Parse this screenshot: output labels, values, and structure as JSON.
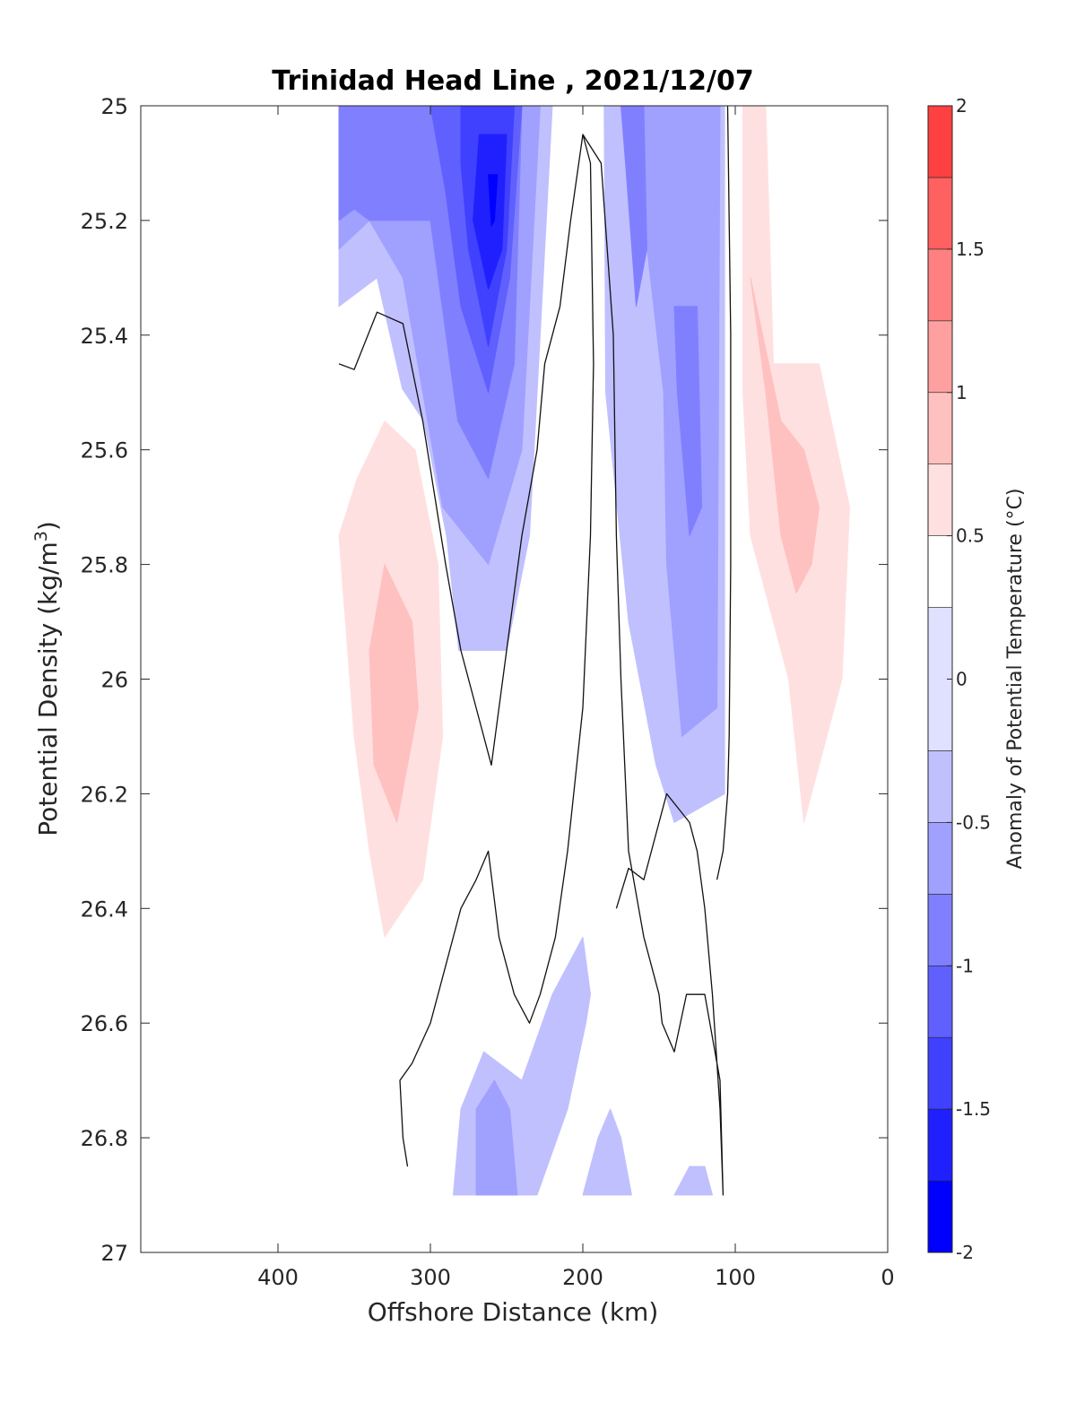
{
  "chart_data": {
    "type": "heatmap",
    "subtype": "filled-contour",
    "title": "Trinidad Head Line , 2021/12/07",
    "xlabel": "Offshore Distance (km)",
    "ylabel": "Potential Density (kg/m",
    "ylabel_sup": "3",
    "ylabel_close": ")",
    "xlim": [
      490,
      0
    ],
    "x_reversed": true,
    "ylim": [
      25,
      27
    ],
    "y_reversed": true,
    "xticks": [
      400,
      300,
      200,
      100,
      0
    ],
    "yticks": [
      25,
      25.2,
      25.4,
      25.6,
      25.8,
      26,
      26.2,
      26.4,
      26.6,
      26.8,
      27
    ],
    "ytick_labels": [
      "25",
      "25.2",
      "25.4",
      "25.6",
      "25.8",
      "26",
      "26.2",
      "26.4",
      "26.6",
      "26.8",
      "27"
    ],
    "colorbar": {
      "label": "Anomaly of Potential Temperature (°C)",
      "range": [
        -2,
        2
      ],
      "ticks": [
        -2,
        -1.5,
        -1,
        -0.5,
        0,
        0.5,
        1,
        1.5,
        2
      ],
      "levels": [
        -2,
        -1.75,
        -1.5,
        -1.25,
        -1,
        -0.75,
        -0.5,
        -0.25,
        0.25,
        0.5,
        0.75,
        1,
        1.25,
        1.5,
        1.75,
        2
      ],
      "colors": [
        "#0000ff",
        "#2020ff",
        "#4040ff",
        "#6060ff",
        "#8080ff",
        "#a0a0ff",
        "#c0c0ff",
        "#e0e0ff",
        "#ffffff",
        "#ffe0e0",
        "#ffc0c0",
        "#ffa0a0",
        "#ff8080",
        "#ff6060",
        "#ff4040",
        "#ff2020"
      ]
    },
    "data_extent": {
      "x_min": 20,
      "x_max": 360,
      "y_min": 25,
      "y_max": 26.9
    },
    "regions": [
      {
        "anomaly": -0.375,
        "points": [
          [
            360,
            25.0
          ],
          [
            220,
            25.0
          ],
          [
            235,
            25.75
          ],
          [
            250,
            25.95
          ],
          [
            290,
            25.95
          ],
          [
            305,
            25.65
          ],
          [
            335,
            25.3
          ],
          [
            360,
            25.35
          ]
        ]
      },
      {
        "anomaly": -0.625,
        "points": [
          [
            360,
            25.0
          ],
          [
            228,
            25.0
          ],
          [
            240,
            25.6
          ],
          [
            262,
            25.8
          ],
          [
            292,
            25.7
          ],
          [
            318,
            25.3
          ],
          [
            340,
            25.2
          ],
          [
            360,
            25.25
          ]
        ]
      },
      {
        "anomaly": -0.875,
        "points": [
          [
            360,
            25.0
          ],
          [
            240,
            25.0
          ],
          [
            245,
            25.45
          ],
          [
            262,
            25.65
          ],
          [
            282,
            25.55
          ],
          [
            300,
            25.2
          ],
          [
            340,
            25.2
          ],
          [
            350,
            25.18
          ],
          [
            360,
            25.2
          ]
        ]
      },
      {
        "anomaly": -1.125,
        "points": [
          [
            300,
            25.0
          ],
          [
            240,
            25.0
          ],
          [
            248,
            25.3
          ],
          [
            262,
            25.5
          ],
          [
            280,
            25.35
          ],
          [
            290,
            25.15
          ]
        ]
      },
      {
        "anomaly": -1.375,
        "points": [
          [
            280,
            25.0
          ],
          [
            245,
            25.0
          ],
          [
            250,
            25.25
          ],
          [
            262,
            25.42
          ],
          [
            275,
            25.25
          ],
          [
            280,
            25.1
          ]
        ]
      },
      {
        "anomaly": -1.625,
        "points": [
          [
            268,
            25.05
          ],
          [
            250,
            25.05
          ],
          [
            253,
            25.25
          ],
          [
            262,
            25.32
          ],
          [
            272,
            25.2
          ]
        ]
      },
      {
        "anomaly": -1.875,
        "points": [
          [
            262,
            25.12
          ],
          [
            256,
            25.12
          ],
          [
            258,
            25.2
          ],
          [
            260,
            25.21
          ]
        ]
      },
      {
        "anomaly": -0.375,
        "points": [
          [
            186,
            25.0
          ],
          [
            107,
            25.0
          ],
          [
            107,
            26.2
          ],
          [
            140,
            26.25
          ],
          [
            152,
            26.15
          ],
          [
            170,
            25.9
          ],
          [
            185,
            25.5
          ]
        ]
      },
      {
        "anomaly": -0.625,
        "points": [
          [
            165,
            25.0
          ],
          [
            110,
            25.0
          ],
          [
            112,
            26.05
          ],
          [
            135,
            26.1
          ],
          [
            145,
            25.8
          ],
          [
            147,
            25.5
          ],
          [
            160,
            25.2
          ]
        ]
      },
      {
        "anomaly": -0.875,
        "points": [
          [
            175,
            25.0
          ],
          [
            160,
            25.0
          ],
          [
            158,
            25.25
          ],
          [
            165,
            25.35
          ],
          [
            172,
            25.1
          ]
        ]
      },
      {
        "anomaly": -0.875,
        "points": [
          [
            140,
            25.35
          ],
          [
            125,
            25.35
          ],
          [
            122,
            25.7
          ],
          [
            130,
            25.75
          ],
          [
            138,
            25.5
          ]
        ]
      },
      {
        "anomaly": -0.375,
        "points": [
          [
            285,
            26.9
          ],
          [
            230,
            26.9
          ],
          [
            210,
            26.75
          ],
          [
            198,
            26.6
          ],
          [
            195,
            26.55
          ],
          [
            200,
            26.45
          ],
          [
            220,
            26.55
          ],
          [
            240,
            26.7
          ],
          [
            265,
            26.65
          ],
          [
            280,
            26.75
          ]
        ]
      },
      {
        "anomaly": -0.625,
        "points": [
          [
            270,
            26.9
          ],
          [
            243,
            26.9
          ],
          [
            248,
            26.75
          ],
          [
            258,
            26.7
          ],
          [
            270,
            26.75
          ]
        ]
      },
      {
        "anomaly": -0.375,
        "points": [
          [
            200,
            26.9
          ],
          [
            168,
            26.9
          ],
          [
            175,
            26.8
          ],
          [
            182,
            26.75
          ],
          [
            190,
            26.8
          ]
        ]
      },
      {
        "anomaly": -0.375,
        "points": [
          [
            140,
            26.9
          ],
          [
            115,
            26.9
          ],
          [
            120,
            26.85
          ],
          [
            130,
            26.85
          ]
        ]
      },
      {
        "anomaly": 0.375,
        "points": [
          [
            360,
            25.6
          ],
          [
            360,
            26.4
          ],
          [
            350,
            26.6
          ],
          [
            345,
            26.8
          ],
          [
            335,
            26.8
          ],
          [
            310,
            26.55
          ],
          [
            285,
            26.3
          ],
          [
            280,
            26.0
          ],
          [
            290,
            25.75
          ],
          [
            305,
            25.55
          ],
          [
            330,
            25.45
          ],
          [
            350,
            25.55
          ]
        ]
      },
      {
        "anomaly": 0.625,
        "points": [
          [
            360,
            25.75
          ],
          [
            350,
            26.1
          ],
          [
            340,
            26.3
          ],
          [
            330,
            26.45
          ],
          [
            305,
            26.35
          ],
          [
            292,
            26.1
          ],
          [
            295,
            25.8
          ],
          [
            310,
            25.6
          ],
          [
            330,
            25.55
          ],
          [
            348,
            25.65
          ]
        ]
      },
      {
        "anomaly": 0.875,
        "points": [
          [
            330,
            25.8
          ],
          [
            312,
            25.9
          ],
          [
            308,
            26.05
          ],
          [
            322,
            26.25
          ],
          [
            337,
            26.15
          ],
          [
            340,
            25.95
          ]
        ]
      },
      {
        "anomaly": 0.375,
        "points": [
          [
            220,
            25.55
          ],
          [
            205,
            25.45
          ],
          [
            200,
            25.65
          ],
          [
            205,
            25.9
          ],
          [
            212,
            26.2
          ],
          [
            228,
            26.4
          ],
          [
            240,
            26.25
          ],
          [
            242,
            26.05
          ],
          [
            230,
            25.9
          ]
        ]
      },
      {
        "anomaly": 0.375,
        "points": [
          [
            95,
            25.0
          ],
          [
            20,
            25.0
          ],
          [
            20,
            25.15
          ],
          [
            30,
            25.6
          ],
          [
            30,
            26.1
          ],
          [
            22,
            26.3
          ],
          [
            22,
            26.5
          ],
          [
            40,
            26.5
          ],
          [
            60,
            26.45
          ],
          [
            75,
            26.35
          ],
          [
            95,
            26.1
          ]
        ]
      },
      {
        "anomaly": 0.625,
        "points": [
          [
            95,
            25.0
          ],
          [
            80,
            25.0
          ],
          [
            75,
            25.45
          ],
          [
            45,
            25.45
          ],
          [
            25,
            25.7
          ],
          [
            30,
            26.0
          ],
          [
            40,
            26.1
          ],
          [
            55,
            26.25
          ],
          [
            65,
            26.0
          ],
          [
            80,
            25.85
          ],
          [
            90,
            25.75
          ],
          [
            95,
            25.5
          ]
        ]
      },
      {
        "anomaly": 0.875,
        "points": [
          [
            90,
            25.3
          ],
          [
            80,
            25.5
          ],
          [
            70,
            25.75
          ],
          [
            60,
            25.85
          ],
          [
            50,
            25.8
          ],
          [
            45,
            25.7
          ],
          [
            55,
            25.6
          ],
          [
            70,
            25.55
          ],
          [
            82,
            25.4
          ]
        ]
      },
      {
        "anomaly": 0.375,
        "points": [
          [
            110,
            26.3
          ],
          [
            120,
            26.4
          ],
          [
            125,
            26.45
          ],
          [
            110,
            26.45
          ]
        ]
      }
    ],
    "zero_contours": [
      [
        [
          360,
          25.45
        ],
        [
          350,
          25.46
        ],
        [
          335,
          25.36
        ],
        [
          318,
          25.38
        ],
        [
          305,
          25.55
        ],
        [
          290,
          25.8
        ],
        [
          280,
          25.95
        ],
        [
          270,
          26.05
        ],
        [
          260,
          26.15
        ],
        [
          250,
          25.95
        ],
        [
          240,
          25.75
        ],
        [
          230,
          25.6
        ],
        [
          225,
          25.45
        ],
        [
          215,
          25.35
        ],
        [
          208,
          25.2
        ],
        [
          200,
          25.05
        ],
        [
          188,
          25.1
        ],
        [
          180,
          25.4
        ],
        [
          178,
          25.75
        ],
        [
          175,
          26.0
        ],
        [
          170,
          26.3
        ],
        [
          160,
          26.45
        ],
        [
          150,
          26.55
        ],
        [
          148,
          26.6
        ],
        [
          140,
          26.65
        ],
        [
          132,
          26.55
        ],
        [
          120,
          26.55
        ],
        [
          110,
          26.7
        ],
        [
          108,
          26.9
        ],
        [
          110,
          26.75
        ],
        [
          115,
          26.55
        ],
        [
          120,
          26.4
        ],
        [
          125,
          26.3
        ],
        [
          130,
          26.25
        ],
        [
          145,
          26.2
        ],
        [
          160,
          26.35
        ],
        [
          170,
          26.33
        ],
        [
          178,
          26.4
        ]
      ],
      [
        [
          315,
          26.85
        ],
        [
          318,
          26.8
        ],
        [
          320,
          26.7
        ],
        [
          312,
          26.67
        ],
        [
          300,
          26.6
        ],
        [
          290,
          26.5
        ],
        [
          280,
          26.4
        ],
        [
          270,
          26.35
        ],
        [
          262,
          26.3
        ],
        [
          255,
          26.45
        ],
        [
          245,
          26.55
        ],
        [
          235,
          26.6
        ],
        [
          228,
          26.55
        ],
        [
          218,
          26.45
        ],
        [
          210,
          26.3
        ],
        [
          200,
          26.05
        ],
        [
          195,
          25.75
        ],
        [
          193,
          25.45
        ],
        [
          195,
          25.1
        ],
        [
          200,
          25.05
        ]
      ],
      [
        [
          105,
          25.0
        ],
        [
          103,
          25.4
        ],
        [
          103,
          25.8
        ],
        [
          104,
          26.1
        ],
        [
          105,
          26.2
        ],
        [
          108,
          26.3
        ],
        [
          112,
          26.35
        ]
      ]
    ]
  }
}
